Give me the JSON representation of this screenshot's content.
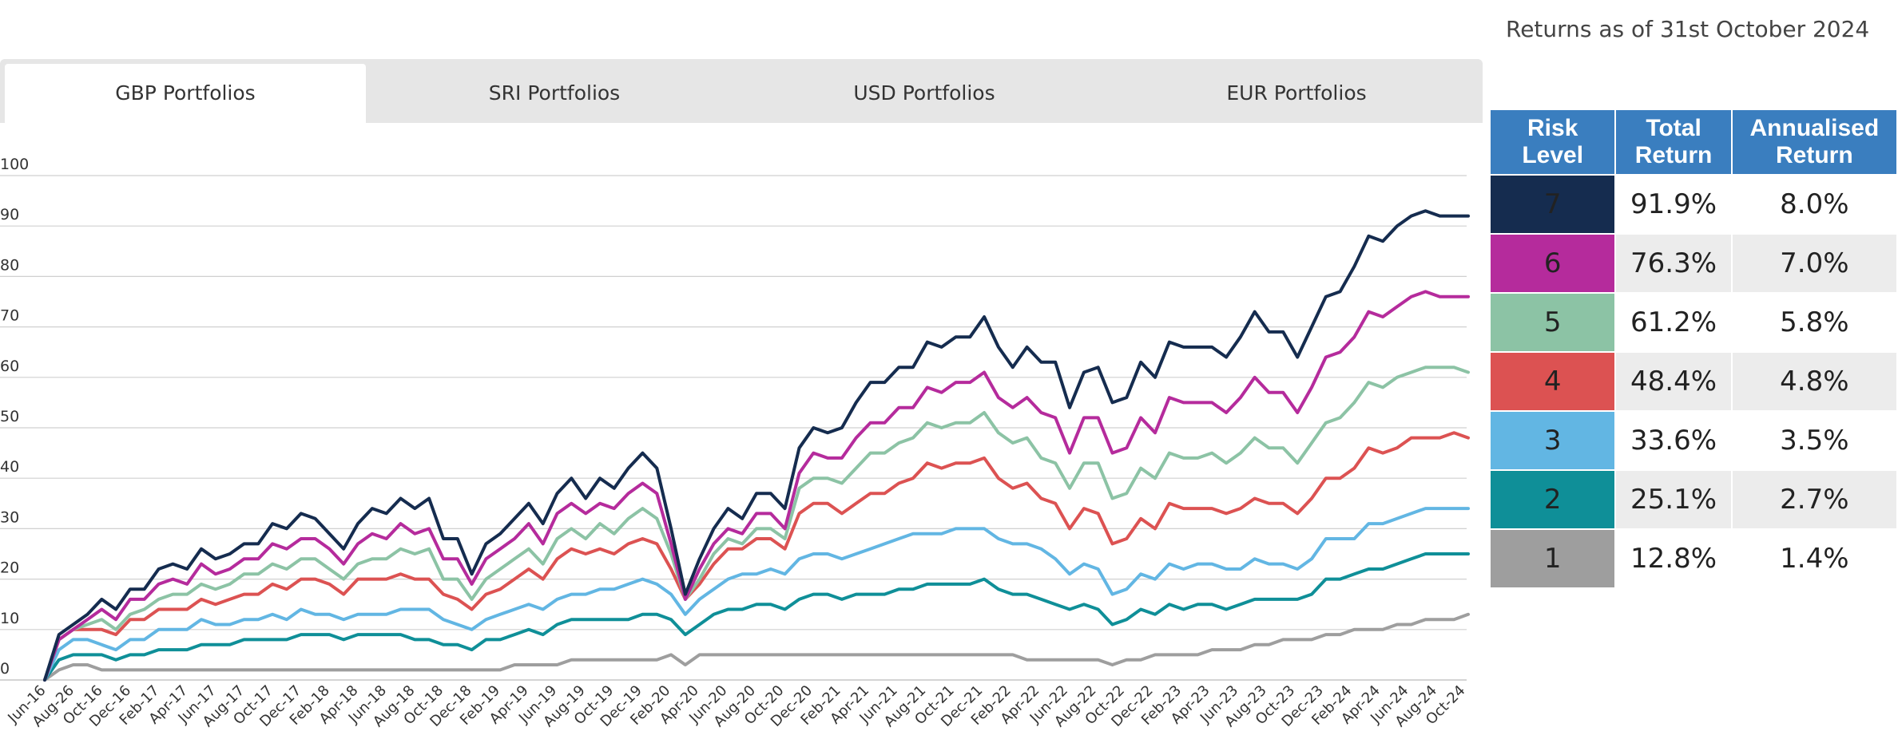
{
  "header": {
    "as_of": "Returns as of 31st October 2024"
  },
  "tabs": [
    {
      "label": "GBP Portfolios",
      "active": true
    },
    {
      "label": "SRI Portfolios",
      "active": false
    },
    {
      "label": "USD Portfolios",
      "active": false
    },
    {
      "label": "EUR Portfolios",
      "active": false
    }
  ],
  "returns_table": {
    "headers": [
      "Risk Level",
      "Total Return",
      "Annualised Return"
    ],
    "rows": [
      {
        "level": "7",
        "total": "91.9%",
        "annualised": "8.0%",
        "color": "#152c4f"
      },
      {
        "level": "6",
        "total": "76.3%",
        "annualised": "7.0%",
        "color": "#b52b9c"
      },
      {
        "level": "5",
        "total": "61.2%",
        "annualised": "5.8%",
        "color": "#8cc3a5"
      },
      {
        "level": "4",
        "total": "48.4%",
        "annualised": "4.8%",
        "color": "#dc5252"
      },
      {
        "level": "3",
        "total": "33.6%",
        "annualised": "3.5%",
        "color": "#62b6e3"
      },
      {
        "level": "2",
        "total": "25.1%",
        "annualised": "2.7%",
        "color": "#0f8f98"
      },
      {
        "level": "1",
        "total": "12.8%",
        "annualised": "1.4%",
        "color": "#9e9e9e"
      }
    ]
  },
  "chart_data": {
    "type": "line",
    "title": "",
    "xlabel": "",
    "ylabel": "",
    "ylim": [
      0,
      100
    ],
    "yticks": [
      0,
      10,
      20,
      30,
      40,
      50,
      60,
      70,
      80,
      90,
      100
    ],
    "grid": true,
    "x_tick_labels": [
      "Jun-16",
      "Aug-26",
      "Oct-16",
      "Dec-16",
      "Feb-17",
      "Apr-17",
      "Jun-17",
      "Aug-17",
      "Oct-17",
      "Dec-17",
      "Feb-18",
      "Apr-18",
      "Jun-18",
      "Aug-18",
      "Oct-18",
      "Dec-18",
      "Feb-19",
      "Apr-19",
      "Jun-19",
      "Aug-19",
      "Oct-19",
      "Dec-19",
      "Feb-20",
      "Apr-20",
      "Jun-20",
      "Aug-20",
      "Oct-20",
      "Dec-20",
      "Feb-21",
      "Apr-21",
      "Jun-21",
      "Aug-21",
      "Oct-21",
      "Dec-21",
      "Feb-22",
      "Apr-22",
      "Jun-22",
      "Aug-22",
      "Oct-22",
      "Dec-22",
      "Feb-23",
      "Apr-23",
      "Jun-23",
      "Aug-23",
      "Oct-23",
      "Dec-23",
      "Feb-24",
      "Apr-24",
      "Jun-24",
      "Aug-24",
      "Oct-24"
    ],
    "series": [
      {
        "name": "7",
        "color": "#152c4f",
        "values": [
          0,
          9,
          11,
          13,
          16,
          14,
          18,
          18,
          22,
          23,
          22,
          26,
          24,
          25,
          27,
          27,
          31,
          30,
          33,
          32,
          29,
          26,
          31,
          34,
          33,
          36,
          34,
          36,
          28,
          28,
          21,
          27,
          29,
          32,
          35,
          31,
          37,
          40,
          36,
          40,
          38,
          42,
          45,
          42,
          30,
          17,
          24,
          30,
          34,
          32,
          37,
          37,
          34,
          46,
          50,
          49,
          50,
          55,
          59,
          59,
          62,
          62,
          67,
          66,
          68,
          68,
          72,
          66,
          62,
          66,
          63,
          63,
          54,
          61,
          62,
          55,
          56,
          63,
          60,
          67,
          66,
          66,
          66,
          64,
          68,
          73,
          69,
          69,
          64,
          70,
          76,
          77,
          82,
          88,
          87,
          90,
          92,
          93,
          92,
          92,
          92
        ]
      },
      {
        "name": "6",
        "color": "#b52b9c",
        "values": [
          0,
          8,
          10,
          12,
          14,
          12,
          16,
          16,
          19,
          20,
          19,
          23,
          21,
          22,
          24,
          24,
          27,
          26,
          28,
          28,
          26,
          23,
          27,
          29,
          28,
          31,
          29,
          30,
          24,
          24,
          19,
          24,
          26,
          28,
          31,
          27,
          33,
          35,
          33,
          35,
          34,
          37,
          39,
          37,
          27,
          16,
          22,
          27,
          30,
          29,
          33,
          33,
          30,
          41,
          45,
          44,
          44,
          48,
          51,
          51,
          54,
          54,
          58,
          57,
          59,
          59,
          61,
          56,
          54,
          56,
          53,
          52,
          45,
          52,
          52,
          45,
          46,
          52,
          49,
          56,
          55,
          55,
          55,
          53,
          56,
          60,
          57,
          57,
          53,
          58,
          64,
          65,
          68,
          73,
          72,
          74,
          76,
          77,
          76,
          76,
          76
        ]
      },
      {
        "name": "5",
        "color": "#8cc3a5",
        "values": [
          0,
          8,
          10,
          11,
          12,
          10,
          13,
          14,
          16,
          17,
          17,
          19,
          18,
          19,
          21,
          21,
          23,
          22,
          24,
          24,
          22,
          20,
          23,
          24,
          24,
          26,
          25,
          26,
          20,
          20,
          16,
          20,
          22,
          24,
          26,
          23,
          28,
          30,
          28,
          31,
          29,
          32,
          34,
          32,
          25,
          16,
          20,
          25,
          28,
          27,
          30,
          30,
          28,
          38,
          40,
          40,
          39,
          42,
          45,
          45,
          47,
          48,
          51,
          50,
          51,
          51,
          53,
          49,
          47,
          48,
          44,
          43,
          38,
          43,
          43,
          36,
          37,
          42,
          40,
          45,
          44,
          44,
          45,
          43,
          45,
          48,
          46,
          46,
          43,
          47,
          51,
          52,
          55,
          59,
          58,
          60,
          61,
          62,
          62,
          62,
          61
        ]
      },
      {
        "name": "4",
        "color": "#dc5252",
        "values": [
          0,
          8,
          10,
          10,
          10,
          9,
          12,
          12,
          14,
          14,
          14,
          16,
          15,
          16,
          17,
          17,
          19,
          18,
          20,
          20,
          19,
          17,
          20,
          20,
          20,
          21,
          20,
          20,
          17,
          16,
          14,
          17,
          18,
          20,
          22,
          20,
          24,
          26,
          25,
          26,
          25,
          27,
          28,
          27,
          22,
          16,
          19,
          23,
          26,
          26,
          28,
          28,
          26,
          33,
          35,
          35,
          33,
          35,
          37,
          37,
          39,
          40,
          43,
          42,
          43,
          43,
          44,
          40,
          38,
          39,
          36,
          35,
          30,
          34,
          33,
          27,
          28,
          32,
          30,
          35,
          34,
          34,
          34,
          33,
          34,
          36,
          35,
          35,
          33,
          36,
          40,
          40,
          42,
          46,
          45,
          46,
          48,
          48,
          48,
          49,
          48
        ]
      },
      {
        "name": "3",
        "color": "#62b6e3",
        "values": [
          0,
          6,
          8,
          8,
          7,
          6,
          8,
          8,
          10,
          10,
          10,
          12,
          11,
          11,
          12,
          12,
          13,
          12,
          14,
          13,
          13,
          12,
          13,
          13,
          13,
          14,
          14,
          14,
          12,
          11,
          10,
          12,
          13,
          14,
          15,
          14,
          16,
          17,
          17,
          18,
          18,
          19,
          20,
          19,
          17,
          13,
          16,
          18,
          20,
          21,
          21,
          22,
          21,
          24,
          25,
          25,
          24,
          25,
          26,
          27,
          28,
          29,
          29,
          29,
          30,
          30,
          30,
          28,
          27,
          27,
          26,
          24,
          21,
          23,
          22,
          17,
          18,
          21,
          20,
          23,
          22,
          23,
          23,
          22,
          22,
          24,
          23,
          23,
          22,
          24,
          28,
          28,
          28,
          31,
          31,
          32,
          33,
          34,
          34,
          34,
          34
        ]
      },
      {
        "name": "2",
        "color": "#0f8f98",
        "values": [
          0,
          4,
          5,
          5,
          5,
          4,
          5,
          5,
          6,
          6,
          6,
          7,
          7,
          7,
          8,
          8,
          8,
          8,
          9,
          9,
          9,
          8,
          9,
          9,
          9,
          9,
          8,
          8,
          7,
          7,
          6,
          8,
          8,
          9,
          10,
          9,
          11,
          12,
          12,
          12,
          12,
          12,
          13,
          13,
          12,
          9,
          11,
          13,
          14,
          14,
          15,
          15,
          14,
          16,
          17,
          17,
          16,
          17,
          17,
          17,
          18,
          18,
          19,
          19,
          19,
          19,
          20,
          18,
          17,
          17,
          16,
          15,
          14,
          15,
          14,
          11,
          12,
          14,
          13,
          15,
          14,
          15,
          15,
          14,
          15,
          16,
          16,
          16,
          16,
          17,
          20,
          20,
          21,
          22,
          22,
          23,
          24,
          25,
          25,
          25,
          25
        ]
      },
      {
        "name": "1",
        "color": "#9e9e9e",
        "values": [
          0,
          2,
          3,
          3,
          2,
          2,
          2,
          2,
          2,
          2,
          2,
          2,
          2,
          2,
          2,
          2,
          2,
          2,
          2,
          2,
          2,
          2,
          2,
          2,
          2,
          2,
          2,
          2,
          2,
          2,
          2,
          2,
          2,
          3,
          3,
          3,
          3,
          4,
          4,
          4,
          4,
          4,
          4,
          4,
          5,
          3,
          5,
          5,
          5,
          5,
          5,
          5,
          5,
          5,
          5,
          5,
          5,
          5,
          5,
          5,
          5,
          5,
          5,
          5,
          5,
          5,
          5,
          5,
          5,
          4,
          4,
          4,
          4,
          4,
          4,
          3,
          4,
          4,
          5,
          5,
          5,
          5,
          6,
          6,
          6,
          7,
          7,
          8,
          8,
          8,
          9,
          9,
          10,
          10,
          10,
          11,
          11,
          12,
          12,
          12,
          13
        ]
      }
    ]
  }
}
